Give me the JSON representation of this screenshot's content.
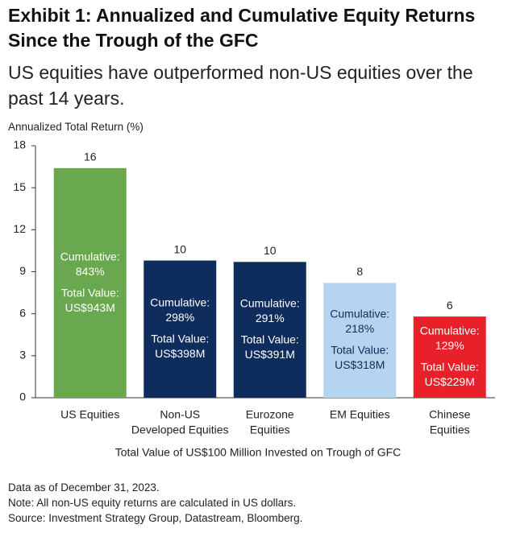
{
  "title": "Exhibit 1: Annualized and Cumulative Equity Returns Since the Trough of the GFC",
  "subtitle": "US equities have outperformed non-US equities over the past 14 years.",
  "chart_data": {
    "type": "bar",
    "title": "Exhibit 1: Annualized and Cumulative Equity Returns Since the Trough of the GFC",
    "ylabel": "Annualized Total Return (%)",
    "xlabel": "Total Value of US$100 Million Invested on Trough of GFC",
    "ylim": [
      0,
      18
    ],
    "yticks": [
      "0",
      "3",
      "6",
      "9",
      "12",
      "15",
      "18"
    ],
    "grid": false,
    "bars": [
      {
        "category": [
          "US Equities"
        ],
        "value": 16.4,
        "label": "16",
        "cumulative_label": "Cumulative:",
        "cumulative": "843%",
        "total_label": "Total Value:",
        "total": "US$943M",
        "color": "#6aa84f"
      },
      {
        "category": [
          "Non-US",
          "Developed Equities"
        ],
        "value": 9.8,
        "label": "10",
        "cumulative_label": "Cumulative:",
        "cumulative": "298%",
        "total_label": "Total Value:",
        "total": "US$398M",
        "color": "#0f2d5c"
      },
      {
        "category": [
          "Eurozone",
          "Equities"
        ],
        "value": 9.7,
        "label": "10",
        "cumulative_label": "Cumulative:",
        "cumulative": "291%",
        "total_label": "Total Value:",
        "total": "US$391M",
        "color": "#0f2d5c"
      },
      {
        "category": [
          "EM Equities"
        ],
        "value": 8.2,
        "label": "8",
        "cumulative_label": "Cumulative:",
        "cumulative": "218%",
        "total_label": "Total Value:",
        "total": "US$318M",
        "color": "#b4d4ef"
      },
      {
        "category": [
          "Chinese",
          "Equities"
        ],
        "value": 5.8,
        "label": "6",
        "cumulative_label": "Cumulative:",
        "cumulative": "129%",
        "total_label": "Total Value:",
        "total": "US$229M",
        "color": "#e8202a"
      }
    ]
  },
  "footnotes": {
    "date": "Data as of December 31, 2023.",
    "note": "Note: All non-US equity returns are calculated in US dollars.",
    "source": "Source: Investment Strategy Group, Datastream, Bloomberg."
  },
  "colors": {
    "axis": "#333333",
    "light_text": "#ffffff",
    "dark_text": "#0f2d5c"
  }
}
